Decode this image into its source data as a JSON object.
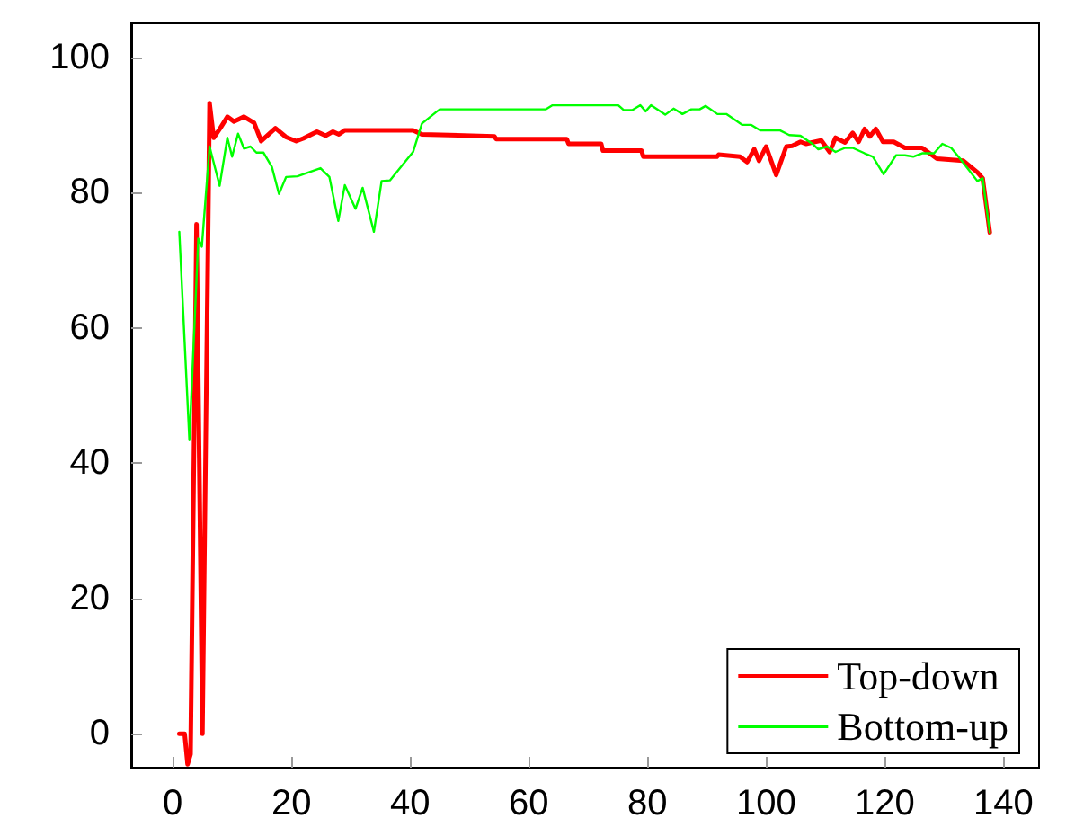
{
  "chart_data": {
    "type": "line",
    "xlim": [
      -7,
      146
    ],
    "ylim": [
      -5,
      105
    ],
    "xticks": [
      0,
      20,
      40,
      60,
      80,
      100,
      120,
      140
    ],
    "yticks": [
      0,
      20,
      40,
      60,
      80,
      100
    ],
    "grid": false,
    "legend": "bottom right",
    "marker": "none",
    "line_style": "solid",
    "series": [
      {
        "name": "Top-down",
        "color": "#ff0000",
        "x": [
          1.1,
          2,
          2.5,
          3,
          4,
          5,
          6.2,
          6.9,
          8,
          9.2,
          10.3,
          12,
          13.7,
          14.9,
          17.3,
          19.1,
          20.8,
          22,
          24.3,
          25.8,
          27,
          28,
          29,
          40.5,
          42,
          54.2,
          54.5,
          66.4,
          66.7,
          72.2,
          72.5,
          79,
          79.3,
          91.7,
          92,
          95.6,
          96.8,
          98,
          98.8,
          100,
          101.7,
          103.4,
          104.4,
          105.8,
          106.7,
          109.3,
          110.7,
          111.7,
          113.3,
          114.6,
          115.6,
          116.6,
          117.5,
          118.5,
          119.7,
          121.5,
          123.4,
          126.3,
          128.8,
          133.2,
          135.6,
          136.5,
          137.7
        ],
        "values": [
          0,
          0,
          -4.5,
          -3,
          75.3,
          0,
          93.2,
          88.1,
          89.5,
          91.2,
          90.5,
          91.2,
          90.3,
          87.6,
          89.5,
          88.2,
          87.6,
          88,
          89,
          88.4,
          89,
          88.6,
          89.2,
          89.2,
          88.6,
          88.3,
          87.9,
          87.9,
          87.2,
          87.2,
          86.2,
          86.2,
          85.3,
          85.3,
          85.6,
          85.3,
          84.5,
          86.4,
          84.7,
          86.8,
          82.6,
          86.8,
          86.9,
          87.5,
          87.2,
          87.7,
          86,
          88.1,
          87.4,
          88.8,
          87.5,
          89.4,
          88.3,
          89.4,
          87.5,
          87.5,
          86.6,
          86.6,
          85,
          84.7,
          83,
          82.1,
          74.1
        ]
      },
      {
        "name": "Bottom-up",
        "color": "#00ff00",
        "x": [
          1.1,
          2.8,
          4.3,
          4.9,
          6.2,
          7.9,
          9.2,
          10,
          11,
          12,
          13.1,
          14.1,
          15.3,
          16.7,
          17.9,
          19.1,
          21,
          24.9,
          26.4,
          27.9,
          29,
          30.8,
          32,
          33.9,
          35.2,
          36.6,
          40.5,
          42,
          44.4,
          45,
          62.9,
          64,
          75.1,
          76,
          77.5,
          78.8,
          79.7,
          80.6,
          83,
          84.4,
          85.9,
          87.4,
          88.8,
          89.8,
          91.8,
          93.3,
          96,
          97.5,
          99,
          102.3,
          103.9,
          105.8,
          107.8,
          108.8,
          110.3,
          111.7,
          113.3,
          114.6,
          116.6,
          118,
          119.8,
          121.9,
          123.4,
          124.8,
          126.3,
          128.3,
          129.7,
          131.2,
          132.6,
          134.1,
          135.6,
          136.5,
          137.7
        ],
        "values": [
          74.2,
          43.4,
          73.2,
          72,
          86.8,
          81,
          88.1,
          85.3,
          88.7,
          86.5,
          86.8,
          85.9,
          85.9,
          83.8,
          79.8,
          82.3,
          82.4,
          83.6,
          82.3,
          75.8,
          81.1,
          77.6,
          80.7,
          74.2,
          81.7,
          81.8,
          86,
          90.2,
          91.9,
          92.3,
          92.3,
          92.9,
          92.9,
          92.2,
          92.2,
          92.9,
          92,
          92.9,
          91.5,
          92.4,
          91.6,
          92.3,
          92.3,
          92.8,
          91.6,
          91.6,
          90,
          90,
          89.2,
          89.2,
          88.5,
          88.4,
          87.2,
          86.4,
          86.8,
          86,
          86.6,
          86.6,
          85.8,
          85.3,
          82.7,
          85.5,
          85.5,
          85.3,
          85.8,
          85.8,
          87.2,
          86.6,
          85.1,
          83.4,
          81.7,
          82.1,
          74.1
        ]
      }
    ]
  }
}
